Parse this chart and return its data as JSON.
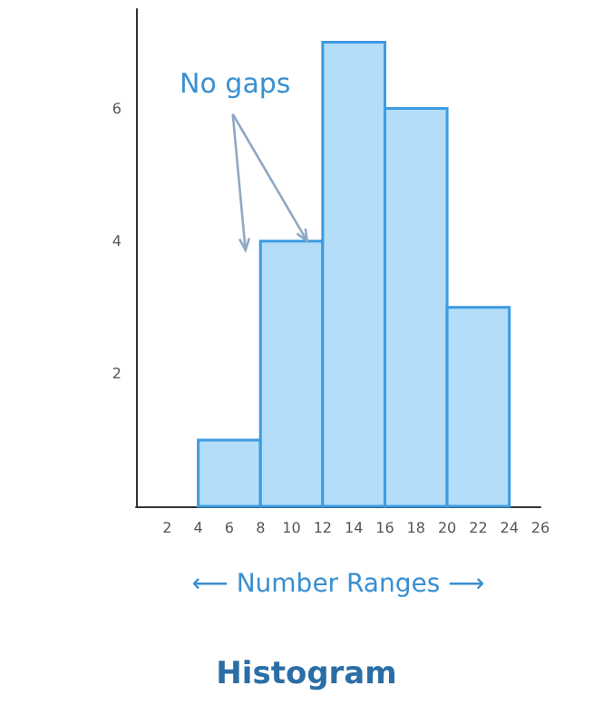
{
  "chart_data": {
    "type": "histogram",
    "title": "Histogram",
    "xlabel": "⟵ Number Ranges ⟶",
    "bins": [
      4,
      8,
      12,
      16,
      20,
      24
    ],
    "values": [
      1,
      4,
      7,
      6,
      3
    ],
    "color": "#b3ddf8",
    "xlim": [
      0,
      26
    ],
    "xticks": [
      2,
      4,
      6,
      8,
      10,
      12,
      14,
      16,
      18,
      20,
      22,
      24,
      {
        "value": 26,
        "label": "26"
      }
    ],
    "ylim": [
      0,
      7.5
    ],
    "yticks": [
      2,
      4,
      6
    ],
    "grid": false,
    "annotations": [
      {
        "text": "No gaps",
        "x": 11,
        "y": 4
      }
    ]
  }
}
